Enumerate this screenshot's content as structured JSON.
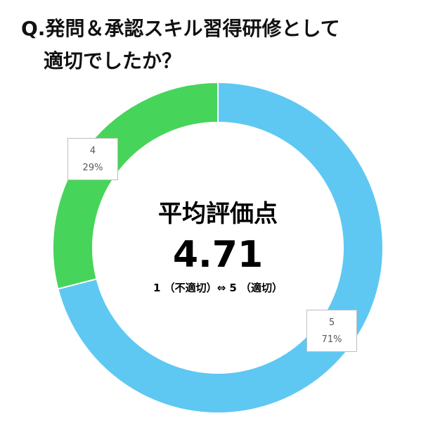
{
  "title": {
    "line1": "Q.発問＆承認スキル習得研修として",
    "line2": "適切でしたか？"
  },
  "center": {
    "label": "平均評価点",
    "value": "4.71",
    "scale": "1 （不適切）⇔ 5 （適切）"
  },
  "chart_data": {
    "type": "pie",
    "donut": true,
    "categories": [
      "5",
      "4"
    ],
    "values": [
      71,
      29
    ],
    "labels": [
      "71%",
      "29%"
    ],
    "colors": [
      "#5ec8f2",
      "#47d45a"
    ],
    "start": "12 o'clock, clockwise"
  }
}
